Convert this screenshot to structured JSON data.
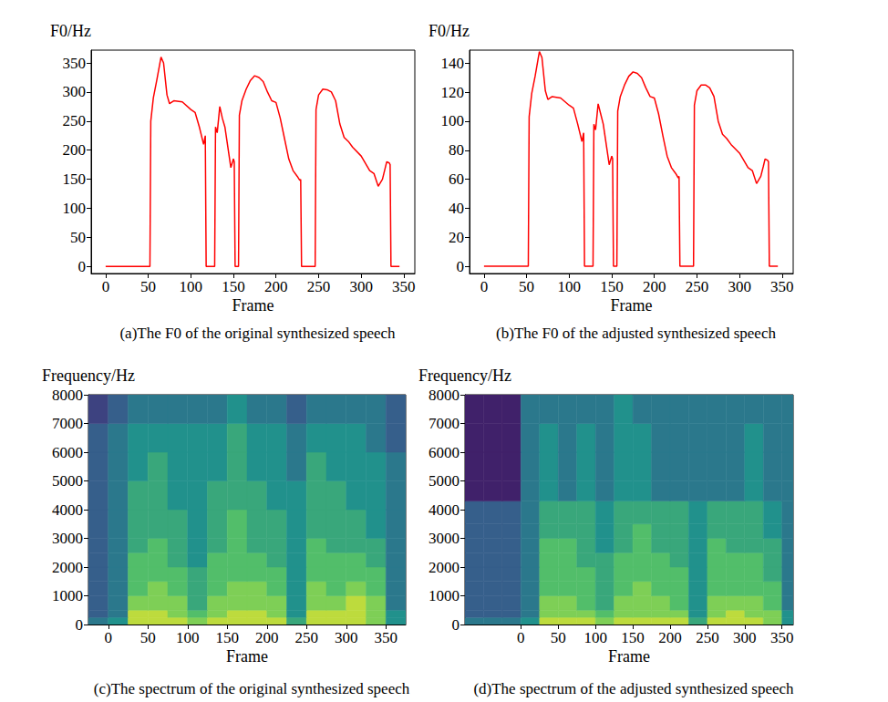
{
  "chart_data": [
    {
      "type": "line",
      "title": "(a)The F0 of the original synthesized speech",
      "xlabel": "Frame",
      "ylabel": "F0/Hz",
      "grid": false,
      "xlim": [
        -17,
        363
      ],
      "xticks": [
        0,
        50,
        100,
        150,
        200,
        250,
        300,
        350
      ],
      "ylim": [
        -12,
        372
      ],
      "yticks": [
        0,
        50,
        100,
        150,
        200,
        250,
        300,
        350
      ],
      "x": [
        0,
        10,
        20,
        30,
        40,
        50,
        52,
        53,
        56,
        60,
        65,
        68,
        72,
        75,
        80,
        90,
        100,
        105,
        110,
        115,
        117,
        118,
        120,
        125,
        128,
        129,
        131,
        134,
        137,
        140,
        145,
        147,
        150,
        151,
        152,
        155,
        156,
        157,
        160,
        165,
        170,
        175,
        180,
        185,
        190,
        195,
        200,
        205,
        210,
        215,
        220,
        225,
        228,
        229,
        230,
        240,
        245,
        246,
        247,
        250,
        255,
        260,
        265,
        270,
        275,
        280,
        285,
        290,
        300,
        310,
        315,
        320,
        325,
        328,
        330,
        333,
        334,
        335,
        340,
        345
      ],
      "series": [
        {
          "color": "#ff0000",
          "values": [
            0,
            0,
            0,
            0,
            0,
            0,
            0,
            250,
            290,
            320,
            360,
            350,
            295,
            280,
            285,
            283,
            270,
            265,
            240,
            210,
            225,
            0,
            0,
            0,
            0,
            240,
            230,
            275,
            255,
            240,
            190,
            170,
            185,
            180,
            0,
            0,
            0,
            260,
            285,
            305,
            320,
            328,
            325,
            318,
            300,
            285,
            282,
            255,
            220,
            185,
            165,
            155,
            148,
            150,
            0,
            0,
            0,
            0,
            270,
            295,
            305,
            304,
            300,
            285,
            245,
            222,
            215,
            205,
            190,
            165,
            160,
            138,
            150,
            168,
            180,
            178,
            175,
            0,
            0,
            0
          ]
        }
      ]
    },
    {
      "type": "line",
      "title": "(b)The F0 of the adjusted synthesized speech",
      "xlabel": "Frame",
      "ylabel": "F0/Hz",
      "grid": false,
      "xlim": [
        -17,
        363
      ],
      "xticks": [
        0,
        50,
        100,
        150,
        200,
        250,
        300,
        350
      ],
      "ylim": [
        -5,
        149
      ],
      "yticks": [
        0,
        20,
        40,
        60,
        80,
        100,
        120,
        140
      ],
      "x": [
        0,
        10,
        20,
        30,
        40,
        50,
        52,
        53,
        56,
        60,
        65,
        68,
        72,
        75,
        80,
        90,
        100,
        105,
        110,
        115,
        117,
        118,
        120,
        125,
        128,
        129,
        131,
        134,
        137,
        140,
        145,
        147,
        150,
        151,
        152,
        155,
        156,
        157,
        160,
        165,
        170,
        175,
        180,
        185,
        190,
        195,
        200,
        205,
        210,
        215,
        220,
        225,
        228,
        229,
        230,
        240,
        245,
        246,
        247,
        250,
        255,
        260,
        265,
        270,
        275,
        280,
        285,
        290,
        300,
        310,
        315,
        320,
        325,
        328,
        330,
        333,
        334,
        335,
        340,
        345
      ],
      "series": [
        {
          "color": "#ff0000",
          "values": [
            0,
            0,
            0,
            0,
            0,
            0,
            0,
            103,
            119,
            131,
            148,
            144,
            121,
            115,
            117,
            116,
            111,
            109,
            98,
            86,
            92,
            0,
            0,
            0,
            0,
            98,
            94,
            112,
            105,
            98,
            78,
            70,
            76,
            74,
            0,
            0,
            0,
            107,
            117,
            125,
            131,
            134,
            133,
            130,
            123,
            117,
            116,
            105,
            90,
            76,
            68,
            64,
            61,
            62,
            0,
            0,
            0,
            0,
            111,
            121,
            125,
            125,
            123,
            117,
            100,
            91,
            88,
            84,
            78,
            68,
            66,
            57,
            62,
            69,
            74,
            73,
            72,
            0,
            0,
            0
          ]
        }
      ]
    },
    {
      "type": "heatmap",
      "title": "(c)The spectrum of the original synthesized speech",
      "xlabel": "Frame",
      "ylabel": "Frequency/Hz",
      "grid": false,
      "xlim": [
        -25,
        375
      ],
      "xticks": [
        0,
        50,
        100,
        150,
        200,
        250,
        300,
        350
      ],
      "ylim": [
        0,
        8000
      ],
      "yticks": [
        0,
        1000,
        2000,
        3000,
        4000,
        5000,
        6000,
        7000,
        8000
      ],
      "zlim": [
        0,
        10
      ],
      "x_edges": [
        -25,
        0,
        25,
        50,
        75,
        100,
        125,
        150,
        175,
        200,
        225,
        250,
        275,
        300,
        325,
        350,
        375
      ],
      "y_edges": [
        0,
        250,
        500,
        1000,
        1500,
        2000,
        2500,
        3000,
        4000,
        5000,
        6000,
        7000,
        8000
      ],
      "cells": [
        [
          4,
          5,
          9,
          9,
          9,
          8,
          9,
          9,
          9,
          9,
          6,
          9,
          9,
          9,
          8,
          5
        ],
        [
          3,
          4,
          9,
          9,
          8,
          7,
          8,
          9,
          9,
          8,
          5,
          9,
          9,
          9,
          8,
          5
        ],
        [
          3,
          4,
          8,
          8,
          8,
          6,
          8,
          8,
          8,
          8,
          5,
          8,
          8,
          9,
          8,
          4
        ],
        [
          3,
          4,
          7,
          8,
          7,
          6,
          7,
          8,
          8,
          7,
          5,
          8,
          7,
          8,
          7,
          4
        ],
        [
          3,
          4,
          7,
          7,
          7,
          6,
          7,
          7,
          7,
          7,
          5,
          7,
          7,
          7,
          7,
          4
        ],
        [
          3,
          4,
          7,
          7,
          6,
          5,
          7,
          7,
          7,
          6,
          5,
          7,
          7,
          7,
          6,
          4
        ],
        [
          3,
          4,
          6,
          7,
          6,
          5,
          6,
          7,
          6,
          6,
          5,
          7,
          6,
          6,
          6,
          4
        ],
        [
          3,
          4,
          6,
          6,
          6,
          5,
          6,
          7,
          6,
          6,
          5,
          6,
          6,
          6,
          5,
          4
        ],
        [
          3,
          4,
          6,
          6,
          5,
          5,
          6,
          6,
          6,
          5,
          5,
          6,
          6,
          5,
          5,
          4
        ],
        [
          3,
          4,
          5,
          6,
          5,
          5,
          5,
          6,
          5,
          5,
          4,
          6,
          5,
          5,
          5,
          4
        ],
        [
          3,
          4,
          5,
          5,
          5,
          5,
          5,
          6,
          5,
          5,
          4,
          5,
          5,
          5,
          4,
          3
        ],
        [
          2,
          3,
          4,
          4,
          4,
          4,
          4,
          5,
          4,
          4,
          3,
          4,
          4,
          4,
          4,
          3
        ]
      ]
    },
    {
      "type": "heatmap",
      "title": "(d)The spectrum of the adjusted synthesized speech",
      "xlabel": "Frame",
      "ylabel": "Frequency/Hz",
      "grid": false,
      "xlim": [
        -75,
        365
      ],
      "xticks": [
        0,
        50,
        100,
        150,
        200,
        250,
        300,
        350
      ],
      "ylim": [
        0,
        8000
      ],
      "yticks": [
        0,
        1000,
        2000,
        3000,
        4000,
        5000,
        6000,
        7000,
        8000
      ],
      "zlim": [
        0,
        10
      ],
      "x_edges": [
        -75,
        -50,
        -25,
        0,
        25,
        50,
        75,
        100,
        125,
        150,
        175,
        200,
        225,
        250,
        275,
        300,
        325,
        350,
        365
      ],
      "y_edges": [
        0,
        250,
        500,
        1000,
        1500,
        2000,
        2500,
        3000,
        3500,
        4300,
        5000,
        6000,
        7000,
        8000
      ],
      "cells": [
        [
          4,
          4,
          4,
          5,
          9,
          9,
          9,
          8,
          9,
          9,
          9,
          9,
          6,
          9,
          9,
          9,
          8,
          5
        ],
        [
          3,
          3,
          3,
          4,
          8,
          8,
          8,
          7,
          8,
          8,
          8,
          8,
          5,
          8,
          9,
          8,
          8,
          5
        ],
        [
          3,
          3,
          3,
          4,
          8,
          8,
          7,
          6,
          8,
          8,
          8,
          7,
          5,
          8,
          8,
          8,
          7,
          4
        ],
        [
          3,
          3,
          3,
          4,
          7,
          7,
          7,
          6,
          7,
          8,
          7,
          7,
          5,
          7,
          7,
          7,
          7,
          4
        ],
        [
          3,
          3,
          3,
          4,
          7,
          7,
          7,
          6,
          7,
          7,
          7,
          7,
          5,
          7,
          7,
          7,
          6,
          4
        ],
        [
          3,
          3,
          3,
          4,
          7,
          7,
          6,
          6,
          7,
          7,
          7,
          6,
          5,
          7,
          7,
          7,
          6,
          4
        ],
        [
          3,
          3,
          3,
          4,
          7,
          7,
          6,
          5,
          6,
          7,
          6,
          6,
          5,
          7,
          6,
          6,
          6,
          4
        ],
        [
          3,
          3,
          3,
          4,
          6,
          6,
          6,
          5,
          6,
          7,
          6,
          6,
          5,
          6,
          6,
          6,
          5,
          4
        ],
        [
          3,
          3,
          3,
          4,
          6,
          6,
          6,
          5,
          6,
          6,
          6,
          6,
          5,
          6,
          6,
          6,
          5,
          4
        ],
        [
          1,
          1,
          1,
          4,
          5,
          4,
          5,
          4,
          5,
          5,
          4,
          4,
          4,
          4,
          4,
          5,
          4,
          4
        ],
        [
          1,
          1,
          1,
          4,
          5,
          4,
          5,
          4,
          5,
          5,
          4,
          4,
          4,
          4,
          4,
          5,
          4,
          4
        ],
        [
          1,
          1,
          1,
          4,
          5,
          4,
          5,
          4,
          5,
          5,
          4,
          4,
          4,
          4,
          4,
          5,
          4,
          4
        ],
        [
          1,
          1,
          1,
          4,
          4,
          4,
          4,
          4,
          5,
          4,
          4,
          4,
          4,
          4,
          4,
          4,
          4,
          4
        ]
      ]
    }
  ]
}
